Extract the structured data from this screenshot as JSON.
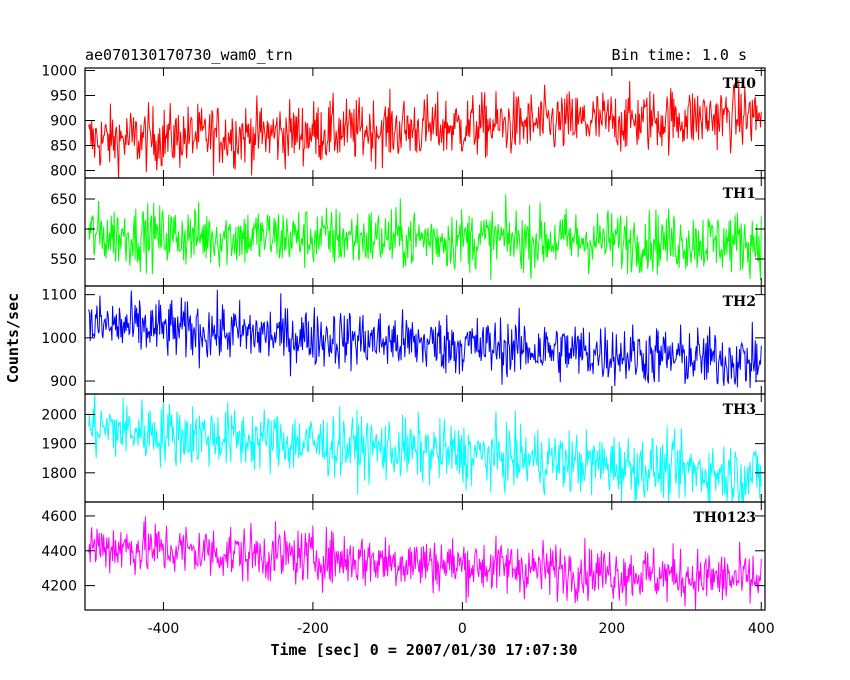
{
  "chart_data": {
    "type": "line",
    "title": "ae070130170730_wam0_trn",
    "bin_time": "Bin time: 1.0 s",
    "xlabel": "Time [sec] 0 = 2007/01/30 17:07:30",
    "ylabel": "Counts/sec",
    "xlim": [
      -505,
      405
    ],
    "xticks": [
      -400,
      -200,
      0,
      200,
      400
    ],
    "grid": false,
    "panels": [
      {
        "name": "TH0",
        "color": "#ff0000",
        "ylim": [
          785,
          1005
        ],
        "yticks": [
          800,
          850,
          900,
          950,
          1000
        ],
        "start_mean": 860,
        "end_mean": 910,
        "noise": 32
      },
      {
        "name": "TH1",
        "color": "#00ff00",
        "ylim": [
          505,
          685
        ],
        "yticks": [
          550,
          600,
          650
        ],
        "start_mean": 590,
        "end_mean": 578,
        "noise": 26
      },
      {
        "name": "TH2",
        "color": "#0000ff",
        "ylim": [
          870,
          1120
        ],
        "yticks": [
          900,
          1000,
          1100
        ],
        "start_mean": 1030,
        "end_mean": 945,
        "noise": 35
      },
      {
        "name": "TH3",
        "color": "#00ffff",
        "ylim": [
          1700,
          2070
        ],
        "yticks": [
          1800,
          1900,
          2000
        ],
        "start_mean": 1955,
        "end_mean": 1790,
        "noise": 55
      },
      {
        "name": "TH0123",
        "color": "#ff00ff",
        "ylim": [
          4060,
          4680
        ],
        "yticks": [
          4200,
          4400,
          4600
        ],
        "start_mean": 4430,
        "end_mean": 4230,
        "noise": 80
      }
    ]
  }
}
